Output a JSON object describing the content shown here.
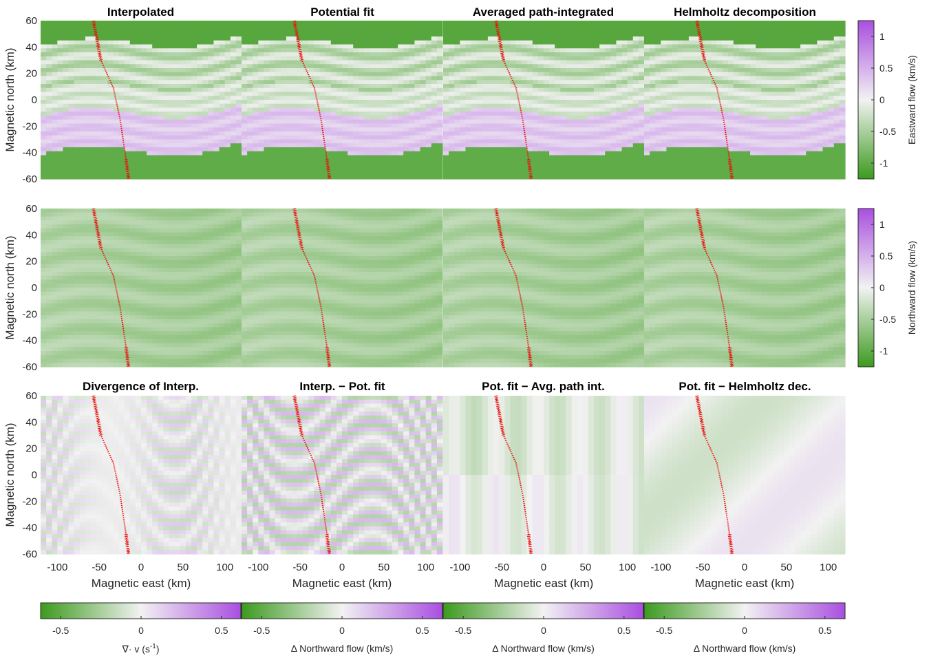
{
  "colors": {
    "negative_end": "#3c9a1e",
    "neutral": "#f2f2f2",
    "positive_end": "#a94fe0",
    "track": "#e8130e"
  },
  "shared_axes": {
    "xlabel": "Magnetic east (km)",
    "ylabel": "Magnetic north (km)",
    "xticks": [
      "-100",
      "-50",
      "0",
      "50",
      "100"
    ],
    "yticks": [
      "60",
      "40",
      "20",
      "0",
      "-20",
      "-40",
      "-60"
    ],
    "xlim": [
      -120,
      120
    ],
    "ylim": [
      -60,
      60
    ]
  },
  "chart_data": [
    {
      "type": "heatmap",
      "row": 1,
      "col": 1,
      "title": "Interpolated",
      "field": "eastward_flow"
    },
    {
      "type": "heatmap",
      "row": 1,
      "col": 2,
      "title": "Potential fit",
      "field": "eastward_flow"
    },
    {
      "type": "heatmap",
      "row": 1,
      "col": 3,
      "title": "Averaged path-integrated",
      "field": "eastward_flow"
    },
    {
      "type": "heatmap",
      "row": 1,
      "col": 4,
      "title": "Helmholtz decomposition",
      "field": "eastward_flow"
    },
    {
      "type": "heatmap",
      "row": 2,
      "col": 1,
      "title": "",
      "field": "northward_flow",
      "variant": "interp"
    },
    {
      "type": "heatmap",
      "row": 2,
      "col": 2,
      "title": "",
      "field": "northward_flow",
      "variant": "smooth"
    },
    {
      "type": "heatmap",
      "row": 2,
      "col": 3,
      "title": "",
      "field": "northward_flow",
      "variant": "streaky"
    },
    {
      "type": "heatmap",
      "row": 2,
      "col": 4,
      "title": "",
      "field": "northward_flow",
      "variant": "smooth"
    },
    {
      "type": "heatmap",
      "row": 3,
      "col": 1,
      "title": "Divergence of Interp.",
      "field": "divergence"
    },
    {
      "type": "heatmap",
      "row": 3,
      "col": 2,
      "title": "Interp. − Pot. fit",
      "field": "difference_stripes"
    },
    {
      "type": "heatmap",
      "row": 3,
      "col": 3,
      "title": "Pot. fit − Avg. path int.",
      "field": "difference_weak"
    },
    {
      "type": "heatmap",
      "row": 3,
      "col": 4,
      "title": "Pot. fit − Helmholtz dec.",
      "field": "difference_smooth"
    }
  ],
  "colorbars": {
    "right": [
      {
        "label": "Eastward flow (km/s)",
        "range": [
          -1.25,
          1.25
        ],
        "ticks": [
          "1",
          "0.5",
          "0",
          "-0.5",
          "-1"
        ],
        "tick_values": [
          1,
          0.5,
          0,
          -0.5,
          -1
        ]
      },
      {
        "label": "Northward flow (km/s)",
        "range": [
          -1.25,
          1.25
        ],
        "ticks": [
          "1",
          "0.5",
          "0",
          "-0.5",
          "-1"
        ],
        "tick_values": [
          1,
          0.5,
          0,
          -0.5,
          -1
        ]
      }
    ],
    "bottom": [
      {
        "label": "∇· v (s",
        "label_sup": "-1",
        "label_end": ")",
        "range": [
          -0.625,
          0.625
        ],
        "ticks": [
          "-0.5",
          "0",
          "0.5"
        ],
        "tick_values": [
          -0.5,
          0,
          0.5
        ]
      },
      {
        "label": "Δ Northward flow (km/s)",
        "range": [
          -0.625,
          0.625
        ],
        "ticks": [
          "-0.5",
          "0",
          "0.5"
        ],
        "tick_values": [
          -0.5,
          0,
          0.5
        ]
      },
      {
        "label": "Δ Northward flow (km/s)",
        "range": [
          -0.625,
          0.625
        ],
        "ticks": [
          "-0.5",
          "0",
          "0.5"
        ],
        "tick_values": [
          -0.5,
          0,
          0.5
        ]
      },
      {
        "label": "Δ Northward flow (km/s)",
        "range": [
          -0.625,
          0.625
        ],
        "ticks": [
          "-0.5",
          "0",
          "0.5"
        ],
        "tick_values": [
          -0.5,
          0,
          0.5
        ]
      }
    ]
  }
}
